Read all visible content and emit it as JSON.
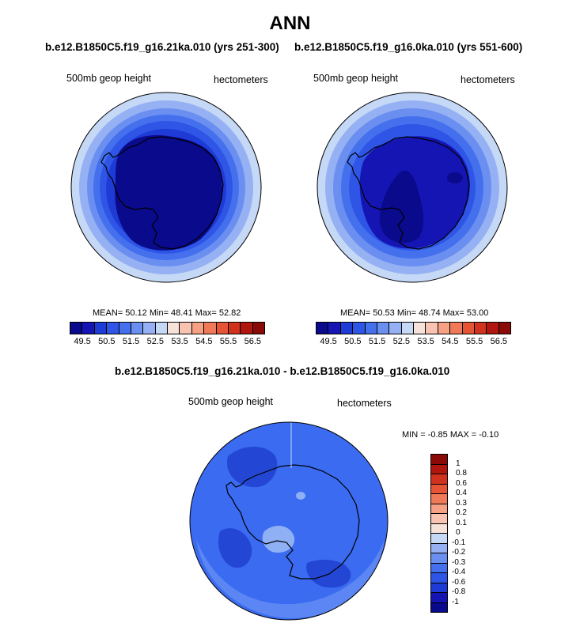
{
  "title": "ANN",
  "panels": [
    {
      "subtitle": "b.e12.B1850C5.f19_g16.21ka.010 (yrs 251-300)",
      "left_label": "500mb geop height",
      "right_label": "hectometers",
      "stats": "MEAN=  50.12  Min=  48.41  Max=  52.82"
    },
    {
      "subtitle": "b.e12.B1850C5.f19_g16.0ka.010 (yrs 551-600)",
      "left_label": "500mb geop height",
      "right_label": "hectometers",
      "stats": "MEAN=  50.53  Min=  48.74  Max=  53.00"
    }
  ],
  "diff_panel": {
    "subtitle": "b.e12.B1850C5.f19_g16.21ka.010 - b.e12.B1850C5.f19_g16.0ka.010",
    "left_label": "500mb geop height",
    "right_label": "hectometers",
    "stats": "MIN =  -0.85 MAX =  -0.10"
  },
  "horizontal_colorbar": {
    "colors": [
      "#0a0a8c",
      "#1515b4",
      "#1f3bd6",
      "#2e55e6",
      "#4470ee",
      "#6a8ff0",
      "#95b1f3",
      "#c5d8f6",
      "#f6e2d8",
      "#f8c3b0",
      "#f6a084",
      "#f07a58",
      "#e55535",
      "#d0321e",
      "#b0160e",
      "#8a0a08"
    ],
    "tick_labels": [
      "49.5",
      "50.5",
      "51.5",
      "52.5",
      "53.5",
      "54.5",
      "55.5",
      "56.5"
    ]
  },
  "vertical_colorbar": {
    "colors": [
      "#8a0a08",
      "#b0160e",
      "#d0321e",
      "#e55535",
      "#f07a58",
      "#f6a084",
      "#f8c3b0",
      "#f6e2d8",
      "#c5d8f6",
      "#95b1f3",
      "#6a8ff0",
      "#4470ee",
      "#2e55e6",
      "#1f3bd6",
      "#1515b4",
      "#0a0a8c"
    ],
    "tick_labels": [
      "1",
      "0.8",
      "0.6",
      "0.4",
      "0.3",
      "0.2",
      "0.1",
      "0",
      "-0.1",
      "-0.2",
      "-0.3",
      "-0.4",
      "-0.6",
      "-0.8",
      "-1"
    ]
  },
  "map_colors": {
    "ring1": "#c5d8f6",
    "ring2": "#95b1f3",
    "ring3": "#6a8ff0",
    "ring4": "#4470ee",
    "ring5": "#2e55e6",
    "ring6": "#1f3bd6",
    "ring7": "#1515b4",
    "ring8": "#0a0a8c",
    "diff_base": "#3a6bf0",
    "diff_dark": "#2347d4",
    "diff_light": "#8fb0f4",
    "diff_outer": "#5b86f3"
  }
}
